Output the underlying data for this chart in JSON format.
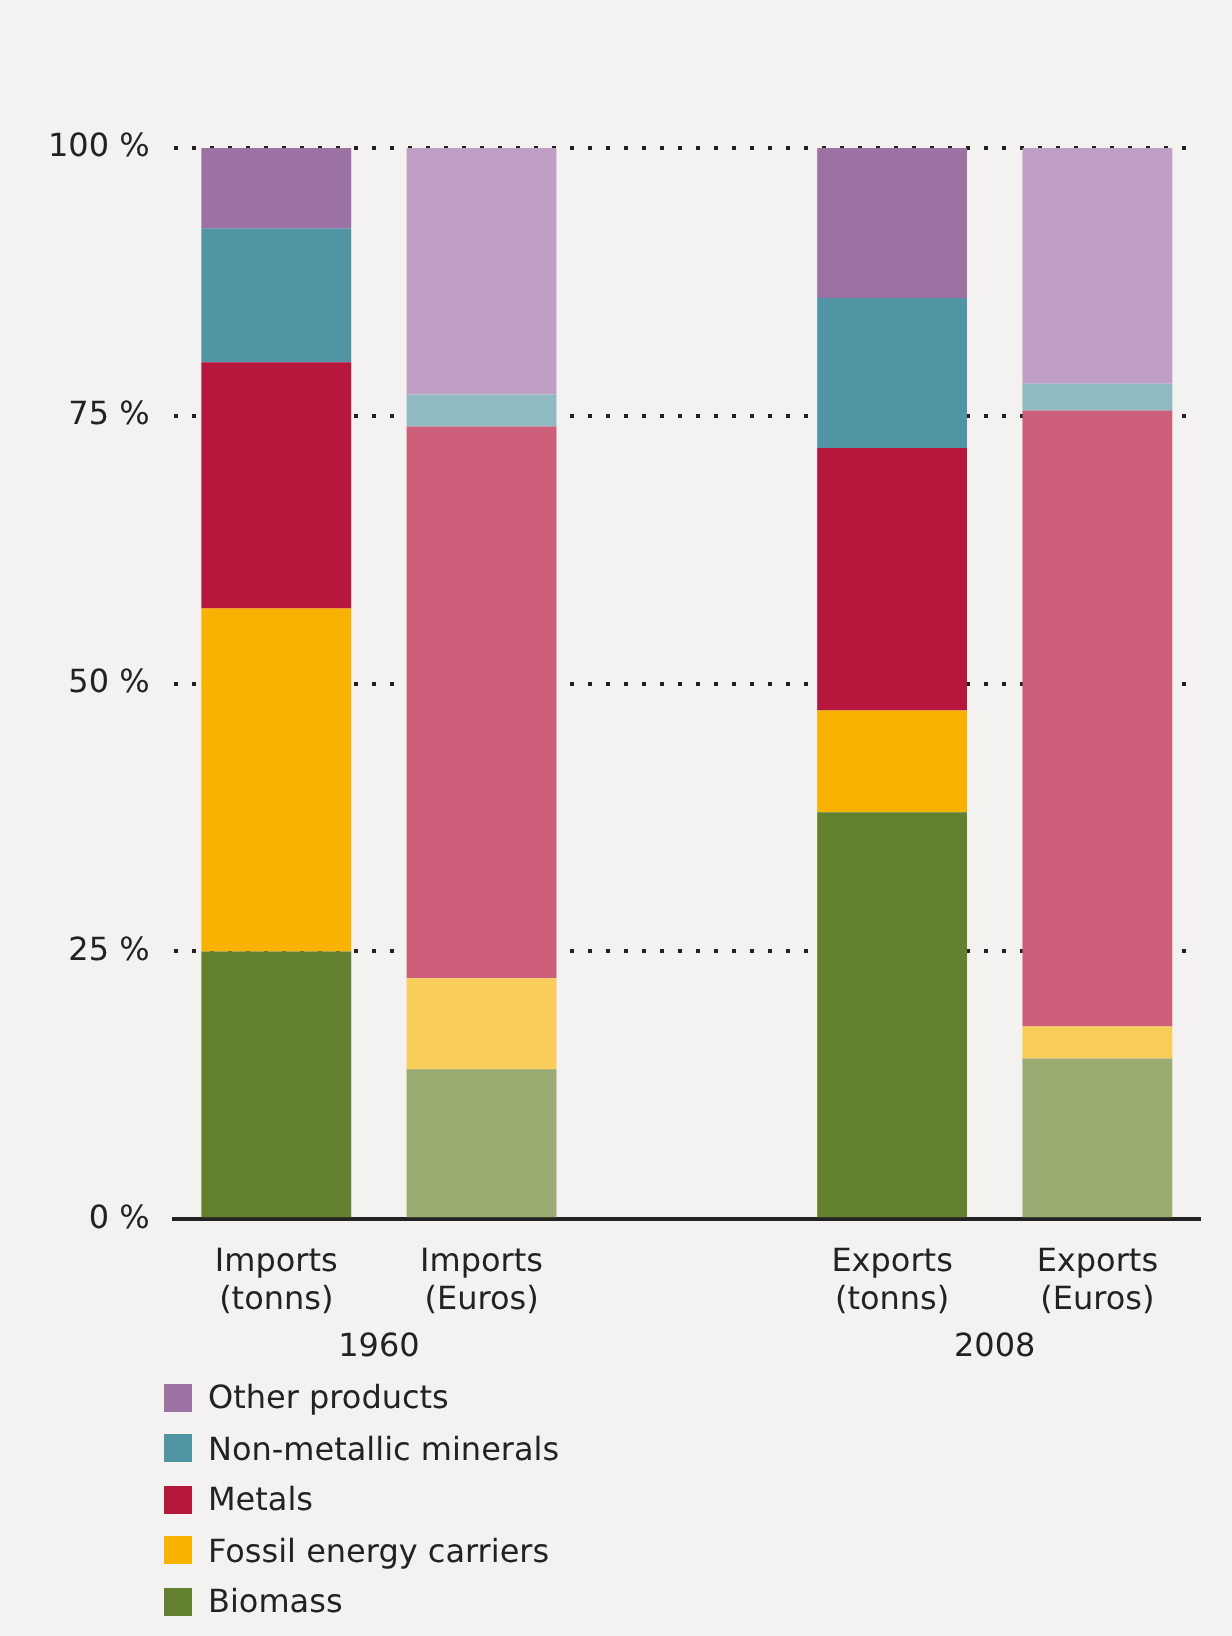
{
  "chart_data": {
    "type": "bar",
    "stacked": true,
    "categories": [
      "Imports (tonns)",
      "Imports (Euros)",
      null,
      "Exports (tonns)",
      "Exports (Euros)"
    ],
    "series": [
      {
        "name": "Biomass",
        "color": "#63802e",
        "colors": [
          "#63802e",
          "#9aab72",
          null,
          "#63802e",
          "#9aab72"
        ],
        "values": [
          25,
          14,
          null,
          38,
          15
        ]
      },
      {
        "name": "Fossil energy carriers",
        "color": "#f8b200",
        "colors": [
          "#f8b200",
          "#f9cd5a",
          null,
          "#f8b200",
          "#f9cd5a"
        ],
        "values": [
          32,
          8.5,
          null,
          9.5,
          3
        ]
      },
      {
        "name": "Metals",
        "color": "#b5173d",
        "colors": [
          "#b5173d",
          "#cd5f7a",
          null,
          "#b5173d",
          "#cd5f7a"
        ],
        "values": [
          23,
          51.5,
          null,
          24.5,
          57.5
        ]
      },
      {
        "name": "Non-metallic minerals",
        "color": "#5195a5",
        "colors": [
          "#5195a5",
          "#8fbac2",
          null,
          "#5195a5",
          "#8fbac2"
        ],
        "values": [
          12.5,
          3,
          null,
          14,
          2.5
        ]
      },
      {
        "name": "Other products",
        "color": "#9b72a2",
        "colors": [
          "#9b72a2",
          "#bfa0c4",
          null,
          "#9b72a2",
          "#bfa0c4"
        ],
        "values": [
          7.5,
          23,
          null,
          14,
          22
        ]
      }
    ],
    "ylim": [
      0,
      100
    ],
    "yticks": [
      {
        "value": 0,
        "label": "0 %"
      },
      {
        "value": 25,
        "label": "25 %"
      },
      {
        "value": 50,
        "label": "50 %"
      },
      {
        "value": 75,
        "label": "75 %"
      },
      {
        "value": 100,
        "label": "100 %"
      }
    ],
    "grid": "y",
    "legend": "bottom left",
    "annotations": [
      "1960",
      "2008"
    ]
  }
}
